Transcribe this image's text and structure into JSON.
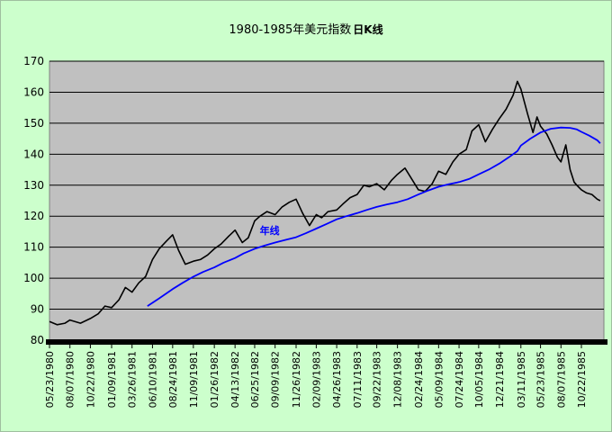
{
  "chart_data": {
    "type": "line",
    "title": "1980-1985年美元指数",
    "title_suffix": "日K线",
    "xlabel": "",
    "ylabel": "",
    "ylim": [
      80,
      170
    ],
    "yticks": [
      80,
      90,
      100,
      110,
      120,
      130,
      140,
      150,
      160,
      170
    ],
    "x_tick_labels": [
      "05/23/1980",
      "08/07/1980",
      "10/22/1980",
      "01/09/1981",
      "03/26/1981",
      "06/10/1981",
      "08/24/1981",
      "11/09/1981",
      "01/26/1982",
      "04/13/1982",
      "06/25/1982",
      "09/09/1982",
      "11/26/1982",
      "02/09/1983",
      "04/26/1983",
      "07/11/1983",
      "09/22/1983",
      "12/08/1983",
      "02/24/1984",
      "05/09/1984",
      "07/24/1984",
      "10/05/1984",
      "12/21/1984",
      "03/11/1985",
      "05/23/1985",
      "08/07/1985",
      "10/22/1985"
    ],
    "grid": true,
    "background": "#c0c0c0",
    "series": [
      {
        "name": "",
        "color": "#000000",
        "x": [
          "05/23/1980",
          "06/20/1980",
          "07/20/1980",
          "08/07/1980",
          "09/15/1980",
          "10/22/1980",
          "11/20/1980",
          "12/15/1980",
          "01/09/1981",
          "02/05/1981",
          "03/01/1981",
          "03/26/1981",
          "04/20/1981",
          "05/15/1981",
          "06/10/1981",
          "07/05/1981",
          "08/01/1981",
          "08/24/1981",
          "09/15/1981",
          "10/10/1981",
          "11/09/1981",
          "12/05/1981",
          "01/01/1982",
          "01/26/1982",
          "02/20/1982",
          "03/20/1982",
          "04/13/1982",
          "05/10/1982",
          "06/01/1982",
          "06/25/1982",
          "07/15/1982",
          "08/10/1982",
          "09/09/1982",
          "10/05/1982",
          "11/01/1982",
          "11/26/1982",
          "12/20/1982",
          "01/15/1983",
          "02/09/1983",
          "03/01/1983",
          "03/25/1983",
          "04/26/1983",
          "05/20/1983",
          "06/15/1983",
          "07/11/1983",
          "08/05/1983",
          "08/25/1983",
          "09/22/1983",
          "10/20/1983",
          "11/15/1983",
          "12/08/1983",
          "01/05/1984",
          "01/30/1984",
          "02/24/1984",
          "03/20/1984",
          "04/15/1984",
          "05/09/1984",
          "06/05/1984",
          "07/01/1984",
          "07/24/1984",
          "08/20/1984",
          "09/10/1984",
          "10/05/1984",
          "10/30/1984",
          "11/25/1984",
          "12/21/1984",
          "01/15/1985",
          "02/10/1985",
          "02/26/1985",
          "03/11/1985",
          "04/05/1985",
          "04/25/1985",
          "05/10/1985",
          "05/23/1985",
          "06/15/1985",
          "07/05/1985",
          "07/25/1985",
          "08/07/1985",
          "08/25/1985",
          "09/10/1985",
          "09/25/1985",
          "10/05/1985",
          "10/22/1985",
          "11/10/1985",
          "11/30/1985",
          "12/20/1985",
          "12/31/1985"
        ],
        "values": [
          86.0,
          85.0,
          85.5,
          86.5,
          85.5,
          87.0,
          88.5,
          91.0,
          90.5,
          93.0,
          97.0,
          95.5,
          98.5,
          100.5,
          106.0,
          109.5,
          112.0,
          114.0,
          109.0,
          104.5,
          105.5,
          106.0,
          107.5,
          109.5,
          111.0,
          113.5,
          115.5,
          111.5,
          113.0,
          118.5,
          120.0,
          121.5,
          120.5,
          123.0,
          124.5,
          125.5,
          121.0,
          117.0,
          120.5,
          119.5,
          121.5,
          122.0,
          124.0,
          126.0,
          127.0,
          130.0,
          129.5,
          130.5,
          128.5,
          131.5,
          133.5,
          135.5,
          132.0,
          128.5,
          128.0,
          130.5,
          134.5,
          133.5,
          137.5,
          140.0,
          141.5,
          147.5,
          149.5,
          144.0,
          148.0,
          151.5,
          154.5,
          159.0,
          163.5,
          161.0,
          153.0,
          147.0,
          152.0,
          149.0,
          146.5,
          143.0,
          139.0,
          137.5,
          143.0,
          135.0,
          131.0,
          130.0,
          128.5,
          127.5,
          127.0,
          125.5,
          125.0
        ]
      },
      {
        "name": "年线",
        "color": "#0000ff",
        "x": [
          "05/22/1981",
          "07/05/1981",
          "08/24/1981",
          "09/30/1981",
          "11/09/1981",
          "12/15/1981",
          "01/26/1982",
          "03/01/1982",
          "04/13/1982",
          "05/15/1982",
          "06/25/1982",
          "08/01/1982",
          "09/09/1982",
          "10/15/1982",
          "11/26/1982",
          "01/01/1983",
          "02/09/1983",
          "03/20/1983",
          "04/26/1983",
          "06/01/1983",
          "07/11/1983",
          "08/15/1983",
          "09/22/1983",
          "10/30/1983",
          "12/08/1983",
          "01/15/1984",
          "02/24/1984",
          "04/01/1984",
          "05/09/1984",
          "06/15/1984",
          "07/24/1984",
          "08/30/1984",
          "10/05/1984",
          "11/15/1984",
          "12/21/1984",
          "01/25/1985",
          "02/26/1985",
          "03/11/1985",
          "04/15/1985",
          "05/23/1985",
          "06/30/1985",
          "08/07/1985",
          "09/10/1985",
          "10/05/1985",
          "10/22/1985",
          "11/20/1985",
          "12/20/1985",
          "12/31/1985"
        ],
        "values": [
          91.0,
          93.5,
          96.5,
          98.5,
          100.5,
          102.0,
          103.5,
          105.0,
          106.5,
          108.0,
          109.5,
          110.5,
          111.5,
          112.3,
          113.2,
          114.5,
          116.0,
          117.5,
          119.0,
          120.0,
          121.0,
          122.0,
          123.0,
          123.8,
          124.5,
          125.5,
          127.0,
          128.3,
          129.5,
          130.3,
          131.0,
          132.0,
          133.5,
          135.2,
          137.0,
          139.0,
          141.0,
          142.8,
          145.0,
          147.0,
          148.2,
          148.6,
          148.5,
          148.0,
          147.2,
          146.0,
          144.5,
          143.5
        ]
      }
    ]
  }
}
